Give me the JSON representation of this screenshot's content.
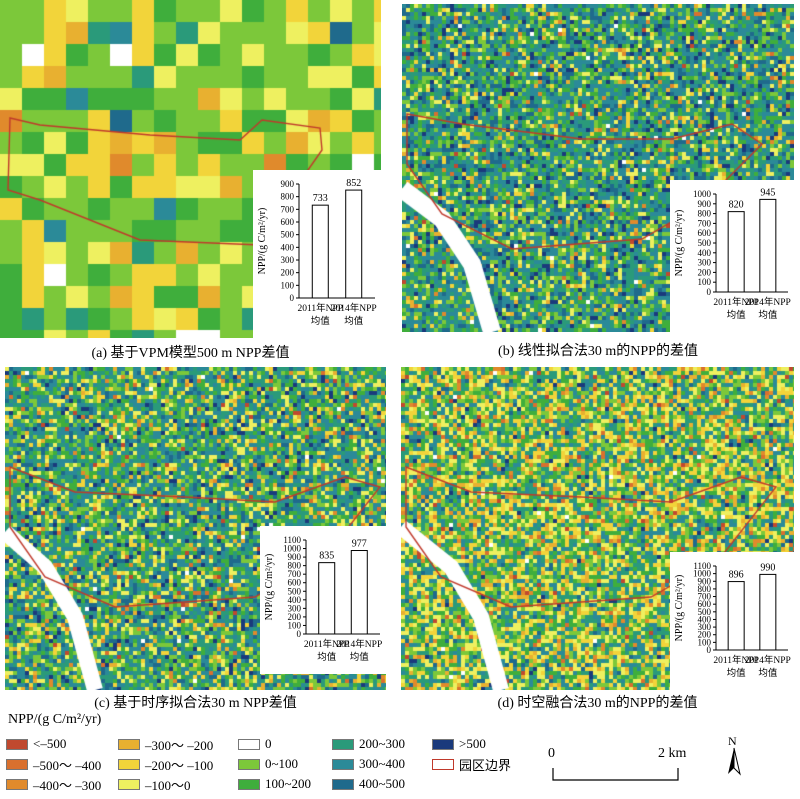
{
  "panels": [
    {
      "id": "a",
      "caption": "(a) 基于VPM模型500 m NPP差值",
      "values": [
        733,
        852
      ],
      "ticks": [
        "0",
        "100",
        "200",
        "300",
        "400",
        "500",
        "600",
        "700",
        "800",
        "900"
      ],
      "ymax": 900
    },
    {
      "id": "b",
      "caption": "(b) 线性拟合法30 m的NPP的差值",
      "values": [
        820,
        945
      ],
      "ticks": [
        "0",
        "100",
        "200",
        "300",
        "400",
        "500",
        "600",
        "700",
        "800",
        "900",
        "1000"
      ],
      "ymax": 1000
    },
    {
      "id": "c",
      "caption": "(c) 基于时序拟合法30 m NPP差值",
      "values": [
        835,
        977
      ],
      "ticks": [
        "0",
        "100",
        "200",
        "300",
        "400",
        "500",
        "600",
        "700",
        "800",
        "900",
        "1000",
        "1100"
      ],
      "ymax": 1100
    },
    {
      "id": "d",
      "caption": "(d) 时空融合法30 m的NPP的差值",
      "values": [
        896,
        990
      ],
      "ticks": [
        "0",
        "100",
        "200",
        "300",
        "400",
        "500",
        "600",
        "700",
        "800",
        "900",
        "1000",
        "1100"
      ],
      "ymax": 1100
    }
  ],
  "inset": {
    "ylabel": "NPP/(g C/m²/yr)",
    "bar1_line1": "2011年NPP",
    "bar1_line2": "均值",
    "bar2_line1": "2014年NPP",
    "bar2_line2": "均值"
  },
  "legend": {
    "title": "NPP/(g C/m²/yr)",
    "items": [
      {
        "label": "<–500",
        "color": "#c0492f"
      },
      {
        "label": "–500～ –400",
        "color": "#d9702e"
      },
      {
        "label": "–400～ –300",
        "color": "#e08a2c"
      },
      {
        "label": "–300～ –200",
        "color": "#e8b030"
      },
      {
        "label": "–200～ –100",
        "color": "#f2d43a"
      },
      {
        "label": "–100～0",
        "color": "#eef060"
      },
      {
        "label": "0",
        "color": "#ffffff"
      },
      {
        "label": "0~100",
        "color": "#7cc83a"
      },
      {
        "label": "100~200",
        "color": "#3fae3c"
      },
      {
        "label": "200~300",
        "color": "#2a9a7a"
      },
      {
        "label": "300~400",
        "color": "#2b8a98"
      },
      {
        "label": "400~500",
        "color": "#1f6a8c"
      },
      {
        "label": ">500",
        "color": "#1a3a7c"
      },
      {
        "label": "园区边界",
        "color": "#c0392b",
        "boundary": true
      }
    ]
  },
  "scale": {
    "start": "0",
    "end": "2 km"
  },
  "north": {
    "label": "N"
  }
}
